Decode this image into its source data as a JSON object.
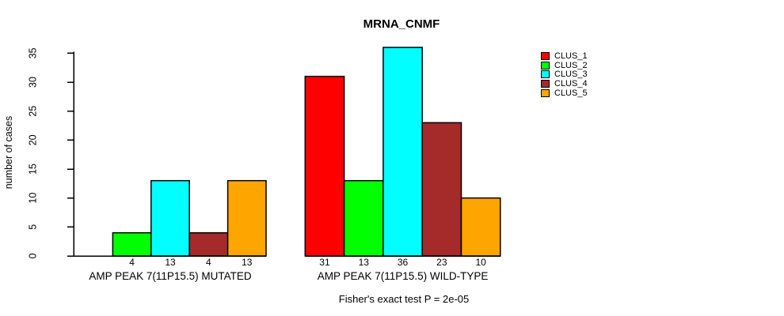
{
  "chart_data": {
    "type": "bar",
    "title": "MRNA_CNMF",
    "ylabel": "number of cases",
    "ylim": [
      0,
      35
    ],
    "yticks": [
      0,
      5,
      10,
      15,
      20,
      25,
      30,
      35
    ],
    "grid": false,
    "legend_position": "right",
    "categories": [
      "AMP PEAK  7(11P15.5) MUTATED",
      "AMP PEAK  7(11P15.5) WILD-TYPE"
    ],
    "series": [
      {
        "name": "CLUS_1",
        "color": "#FF0000",
        "values": [
          0,
          31
        ]
      },
      {
        "name": "CLUS_2",
        "color": "#00FF00",
        "values": [
          4,
          13
        ]
      },
      {
        "name": "CLUS_3",
        "color": "#00FFFF",
        "values": [
          13,
          36
        ]
      },
      {
        "name": "CLUS_4",
        "color": "#A52A2A",
        "values": [
          4,
          23
        ]
      },
      {
        "name": "CLUS_5",
        "color": "#FFA500",
        "values": [
          13,
          10
        ]
      }
    ],
    "bar_value_labels_shown": true,
    "annotation": "Fisher's exact test P = 2e-05"
  }
}
